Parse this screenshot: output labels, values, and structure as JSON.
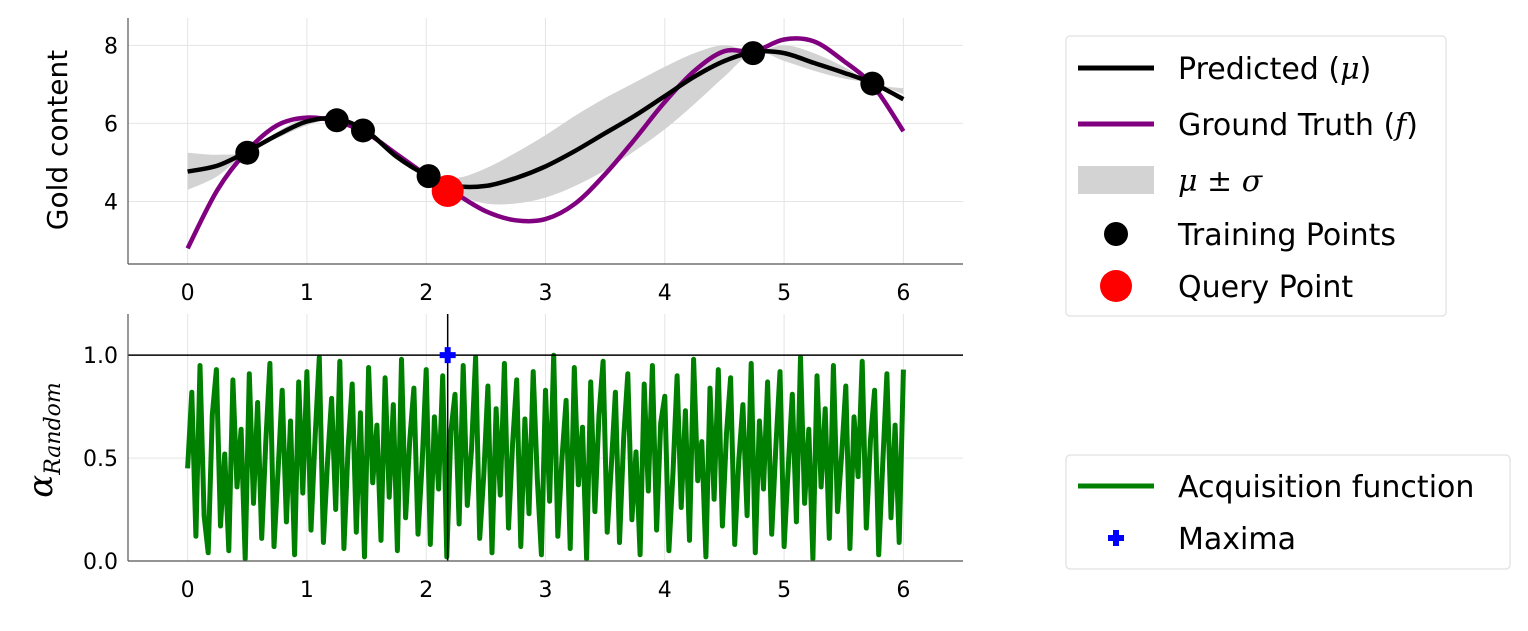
{
  "chart_data": [
    {
      "type": "line",
      "panel": "top",
      "ylabel": "Gold content",
      "xlim": [
        -0.5,
        6.5
      ],
      "ylim": [
        2.4,
        8.7
      ],
      "xticks": [
        0,
        1,
        2,
        3,
        4,
        5,
        6
      ],
      "yticks": [
        4,
        6,
        8
      ],
      "grid": true,
      "colors": {
        "predicted": "#000000",
        "ground_truth": "#800080",
        "band": "#d3d3d3",
        "training": "#000000",
        "query": "#ff0000"
      },
      "series": [
        {
          "name": "Predicted (μ)",
          "x": [
            0,
            0.25,
            0.5,
            0.75,
            1.0,
            1.25,
            1.5,
            1.75,
            2.0,
            2.25,
            2.5,
            2.75,
            3.0,
            3.25,
            3.5,
            3.75,
            4.0,
            4.25,
            4.5,
            4.75,
            5.0,
            5.25,
            5.5,
            5.75,
            6.0
          ],
          "y": [
            4.77,
            4.92,
            5.28,
            5.7,
            6.05,
            6.12,
            5.8,
            5.15,
            4.68,
            4.4,
            4.4,
            4.6,
            4.9,
            5.3,
            5.75,
            6.2,
            6.7,
            7.2,
            7.6,
            7.83,
            7.8,
            7.55,
            7.3,
            7.02,
            6.62
          ]
        },
        {
          "name": "Ground Truth (f)",
          "x": [
            0,
            0.25,
            0.5,
            0.75,
            1.0,
            1.25,
            1.5,
            1.75,
            2.0,
            2.25,
            2.5,
            2.75,
            3.0,
            3.25,
            3.5,
            3.75,
            4.0,
            4.25,
            4.5,
            4.75,
            5.0,
            5.25,
            5.5,
            5.75,
            6.0
          ],
          "y": [
            2.8,
            4.3,
            5.3,
            5.95,
            6.15,
            6.05,
            5.75,
            5.22,
            4.68,
            4.2,
            3.75,
            3.52,
            3.55,
            3.95,
            4.7,
            5.6,
            6.55,
            7.35,
            7.85,
            7.85,
            8.15,
            8.1,
            7.6,
            6.95,
            5.8
          ]
        }
      ],
      "band": {
        "name": "μ ± σ",
        "x": [
          0,
          0.25,
          0.5,
          0.75,
          1.0,
          1.25,
          1.5,
          1.75,
          2.0,
          2.25,
          2.5,
          2.75,
          3.0,
          3.25,
          3.5,
          3.75,
          4.0,
          4.25,
          4.5,
          4.75,
          5.0,
          5.25,
          5.5,
          5.75,
          6.0
        ],
        "lower": [
          4.3,
          4.65,
          5.28,
          5.62,
          5.95,
          6.12,
          5.8,
          5.12,
          4.65,
          4.2,
          3.95,
          3.95,
          4.1,
          4.4,
          4.8,
          5.3,
          5.85,
          6.5,
          7.2,
          7.83,
          7.6,
          7.35,
          7.15,
          7.02,
          6.75
        ],
        "upper": [
          5.25,
          5.2,
          5.28,
          5.78,
          6.15,
          6.12,
          5.8,
          5.18,
          4.71,
          4.6,
          4.85,
          5.25,
          5.7,
          6.2,
          6.65,
          7.05,
          7.45,
          7.8,
          8.0,
          7.83,
          8.0,
          7.8,
          7.45,
          7.02,
          6.9
        ]
      },
      "training_points": {
        "name": "Training Points",
        "x": [
          0.5,
          1.25,
          1.47,
          2.02,
          4.74,
          5.74
        ],
        "y": [
          5.25,
          6.08,
          5.82,
          4.65,
          7.8,
          7.02
        ]
      },
      "query_point": {
        "name": "Query Point",
        "x": 2.18,
        "y": 4.27
      }
    },
    {
      "type": "line",
      "panel": "bottom",
      "ylabel": "α",
      "ylabel_sub": "Random",
      "xlim": [
        -0.5,
        6.5
      ],
      "ylim": [
        0.0,
        1.2
      ],
      "xticks": [
        0,
        1,
        2,
        3,
        4,
        5,
        6
      ],
      "yticks": [
        0.0,
        0.5,
        1.0
      ],
      "ytick_labels": [
        "0.0",
        "0.5",
        "1.0"
      ],
      "grid": true,
      "colors": {
        "acquisition": "#008000",
        "maxima": "#0000ff",
        "ref_line": "#000000"
      },
      "acquisition": {
        "name": "Acquisition function",
        "x_start": 0,
        "x_end": 6,
        "values": [
          0.45,
          0.82,
          0.12,
          0.95,
          0.22,
          0.04,
          0.71,
          0.93,
          0.17,
          0.52,
          0.05,
          0.88,
          0.36,
          0.64,
          0.01,
          0.91,
          0.28,
          0.77,
          0.11,
          0.58,
          0.96,
          0.07,
          0.44,
          0.83,
          0.19,
          0.68,
          0.03,
          0.87,
          0.33,
          0.92,
          0.15,
          0.61,
          0.99,
          0.09,
          0.48,
          0.79,
          0.25,
          0.97,
          0.06,
          0.55,
          0.86,
          0.14,
          0.72,
          0.02,
          0.94,
          0.38,
          0.66,
          0.1,
          0.89,
          0.31,
          0.76,
          0.05,
          0.98,
          0.21,
          0.59,
          0.84,
          0.13,
          0.47,
          0.93,
          0.08,
          0.7,
          0.35,
          0.9,
          0.02,
          0.63,
          0.81,
          0.18,
          0.95,
          0.27,
          0.54,
          0.99,
          0.11,
          0.42,
          0.85,
          0.04,
          0.74,
          0.32,
          0.96,
          0.16,
          0.57,
          0.88,
          0.07,
          0.69,
          0.23,
          0.92,
          0.4,
          0.03,
          0.83,
          0.29,
          1.0,
          0.12,
          0.5,
          0.78,
          0.06,
          0.94,
          0.37,
          0.65,
          0.01,
          0.87,
          0.24,
          0.71,
          0.97,
          0.14,
          0.46,
          0.82,
          0.09,
          0.6,
          0.91,
          0.2,
          0.53,
          0.03,
          0.86,
          0.34,
          0.95,
          0.15,
          0.67,
          0.8,
          0.05,
          0.43,
          0.9,
          0.26,
          0.73,
          0.1,
          0.98,
          0.39,
          0.58,
          0.02,
          0.84,
          0.3,
          0.93,
          0.17,
          0.62,
          0.89,
          0.08,
          0.49,
          0.76,
          0.22,
          0.96,
          0.04,
          0.68,
          0.35,
          0.87,
          0.13,
          0.55,
          0.92,
          0.07,
          0.45,
          0.81,
          0.19,
          0.99,
          0.28,
          0.64,
          0.01,
          0.9,
          0.36,
          0.74,
          0.11,
          0.95,
          0.24,
          0.52,
          0.85,
          0.06,
          0.7,
          0.41,
          0.97,
          0.16,
          0.59,
          0.83,
          0.03,
          0.48,
          0.91,
          0.21,
          0.66,
          0.09,
          0.93
        ],
        "line_width_px_note": ""
      },
      "maxima": {
        "name": "Maxima",
        "x": 2.18,
        "y": 1.0
      },
      "ref_hline": 1.0,
      "ref_vline": 2.18
    }
  ],
  "legends": {
    "top": {
      "entries": [
        {
          "key": "predicted",
          "label_prefix": "Predicted (",
          "label_math": "μ",
          "label_suffix": ")"
        },
        {
          "key": "ground_truth",
          "label_prefix": "Ground Truth (",
          "label_math": "f",
          "label_suffix": ")"
        },
        {
          "key": "band",
          "label_prefix": "",
          "label_math": "μ ± σ",
          "label_suffix": ""
        },
        {
          "key": "training",
          "label_prefix": "Training Points",
          "label_math": "",
          "label_suffix": ""
        },
        {
          "key": "query",
          "label_prefix": "Query Point",
          "label_math": "",
          "label_suffix": ""
        }
      ]
    },
    "bottom": {
      "entries": [
        {
          "key": "acquisition",
          "label_prefix": "Acquisition function",
          "label_math": "",
          "label_suffix": ""
        },
        {
          "key": "maxima",
          "label_prefix": "Maxima",
          "label_math": "",
          "label_suffix": ""
        }
      ]
    }
  }
}
